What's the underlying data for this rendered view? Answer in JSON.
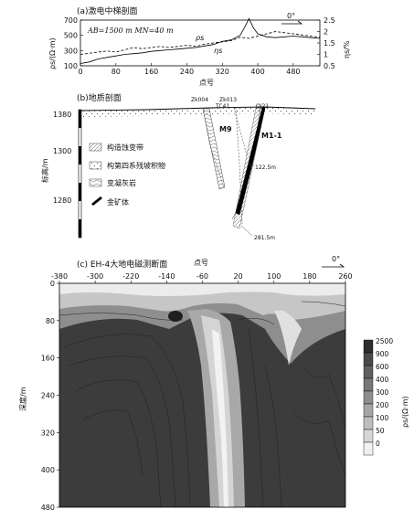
{
  "chart_data": [
    {
      "type": "line",
      "panel_label": "(a)激电中梯剖面",
      "params": "AB=1500 m  MN=40 m",
      "xlabel": "点号",
      "ylabel": "ρs/(Ω·m)",
      "y2label": "ηs/%",
      "x_ticks": [
        0,
        80,
        160,
        240,
        320,
        400,
        480
      ],
      "y_ticks": [
        100,
        300,
        500,
        700
      ],
      "y2_ticks": [
        "0.5",
        "1",
        "1.5",
        "2",
        "2.5"
      ],
      "xlim": [
        0,
        540
      ],
      "ylim": [
        100,
        700
      ],
      "y2lim": [
        0.5,
        2.5
      ],
      "north_mark": "0°",
      "series": [
        {
          "name": "ρs",
          "axis": "left",
          "style": "solid",
          "x": [
            0,
            20,
            40,
            60,
            80,
            100,
            120,
            140,
            160,
            180,
            200,
            220,
            240,
            260,
            280,
            300,
            320,
            340,
            360,
            370,
            380,
            390,
            400,
            420,
            440,
            460,
            480,
            500,
            520,
            540
          ],
          "y": [
            130,
            150,
            190,
            210,
            230,
            250,
            260,
            270,
            290,
            300,
            310,
            320,
            330,
            340,
            360,
            380,
            420,
            440,
            500,
            600,
            720,
            600,
            520,
            480,
            470,
            480,
            490,
            480,
            470,
            460
          ]
        },
        {
          "name": "ηs",
          "axis": "right",
          "style": "dashed",
          "x": [
            0,
            20,
            40,
            60,
            80,
            100,
            120,
            140,
            160,
            180,
            200,
            220,
            240,
            260,
            280,
            300,
            320,
            340,
            360,
            380,
            400,
            420,
            440,
            460,
            480,
            500,
            520,
            540
          ],
          "y": [
            1.0,
            1.05,
            1.1,
            1.15,
            1.1,
            1.2,
            1.3,
            1.25,
            1.3,
            1.35,
            1.3,
            1.35,
            1.4,
            1.35,
            1.45,
            1.5,
            1.55,
            1.6,
            1.75,
            1.7,
            1.8,
            1.9,
            2.0,
            1.95,
            1.9,
            1.85,
            1.8,
            1.75
          ]
        }
      ]
    },
    {
      "type": "diagram",
      "panel_label": "(b)地质剖面",
      "ylabel": "标高/m",
      "y_ticks": [
        1280,
        1300,
        1380
      ],
      "borehole_labels": [
        "Zk004",
        "Zk013",
        "TC41",
        "QJ21"
      ],
      "body_labels": [
        "M9",
        "M1-1"
      ],
      "depth_labels": [
        "122.5m",
        "281.5m"
      ],
      "legend": [
        "构造蚀变带",
        "构第四系残坡积物",
        "变凝灰岩",
        "金矿体"
      ]
    },
    {
      "type": "heatmap",
      "panel_label": "(c) EH-4大地电磁测断面",
      "xlabel": "点号",
      "ylabel": "深度/m",
      "colorbar_label": "ρs/(Ω·m)",
      "x_ticks": [
        -380,
        -300,
        -220,
        -140,
        -60,
        20,
        100,
        180,
        260
      ],
      "y_ticks": [
        0,
        80,
        160,
        240,
        320,
        400,
        480
      ],
      "xlim": [
        -380,
        260
      ],
      "ylim": [
        0,
        480
      ],
      "north_mark": "0°",
      "colorbar_ticks": [
        "2500",
        "900",
        "600",
        "400",
        "300",
        "200",
        "100",
        "50",
        "0"
      ],
      "colorbar_colors": [
        "#2e2e2e",
        "#4a4a4a",
        "#606060",
        "#777777",
        "#8e8e8e",
        "#a6a6a6",
        "#bdbdbd",
        "#d6d6d6",
        "#f0f0f0"
      ]
    }
  ]
}
